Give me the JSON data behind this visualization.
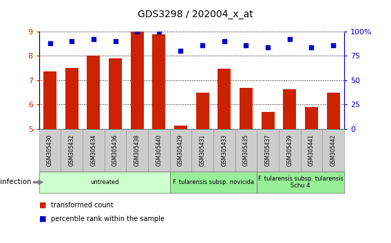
{
  "title": "GDS3298 / 202004_x_at",
  "samples": [
    "GSM305430",
    "GSM305432",
    "GSM305434",
    "GSM305436",
    "GSM305438",
    "GSM305440",
    "GSM305429",
    "GSM305431",
    "GSM305433",
    "GSM305435",
    "GSM305437",
    "GSM305439",
    "GSM305441",
    "GSM305442"
  ],
  "transformed_count": [
    7.35,
    7.5,
    8.0,
    7.9,
    9.0,
    8.88,
    5.12,
    6.48,
    7.48,
    6.68,
    5.7,
    6.62,
    5.88,
    6.5
  ],
  "percentile_rank": [
    88,
    90,
    92,
    90,
    100,
    100,
    80,
    86,
    90,
    86,
    84,
    92,
    84,
    86
  ],
  "bar_color": "#cc2200",
  "dot_color": "#0000cc",
  "ylim_left": [
    5,
    9
  ],
  "ylim_right": [
    0,
    100
  ],
  "yticks_left": [
    5,
    6,
    7,
    8,
    9
  ],
  "yticks_right": [
    0,
    25,
    50,
    75,
    100
  ],
  "ytick_labels_right": [
    "0",
    "25",
    "50",
    "75",
    "100%"
  ],
  "groups": [
    {
      "label": "untreated",
      "start": 0,
      "end": 6,
      "color": "#ccffcc"
    },
    {
      "label": "F. tularensis subsp. novicida",
      "start": 6,
      "end": 10,
      "color": "#99ee99"
    },
    {
      "label": "F. tularensis subsp. tularensis\nSchu 4",
      "start": 10,
      "end": 14,
      "color": "#99ee99"
    }
  ],
  "infection_label": "infection",
  "legend_bar_label": "transformed count",
  "legend_dot_label": "percentile rank within the sample",
  "sample_box_color": "#cccccc",
  "sample_box_edge": "#888888"
}
